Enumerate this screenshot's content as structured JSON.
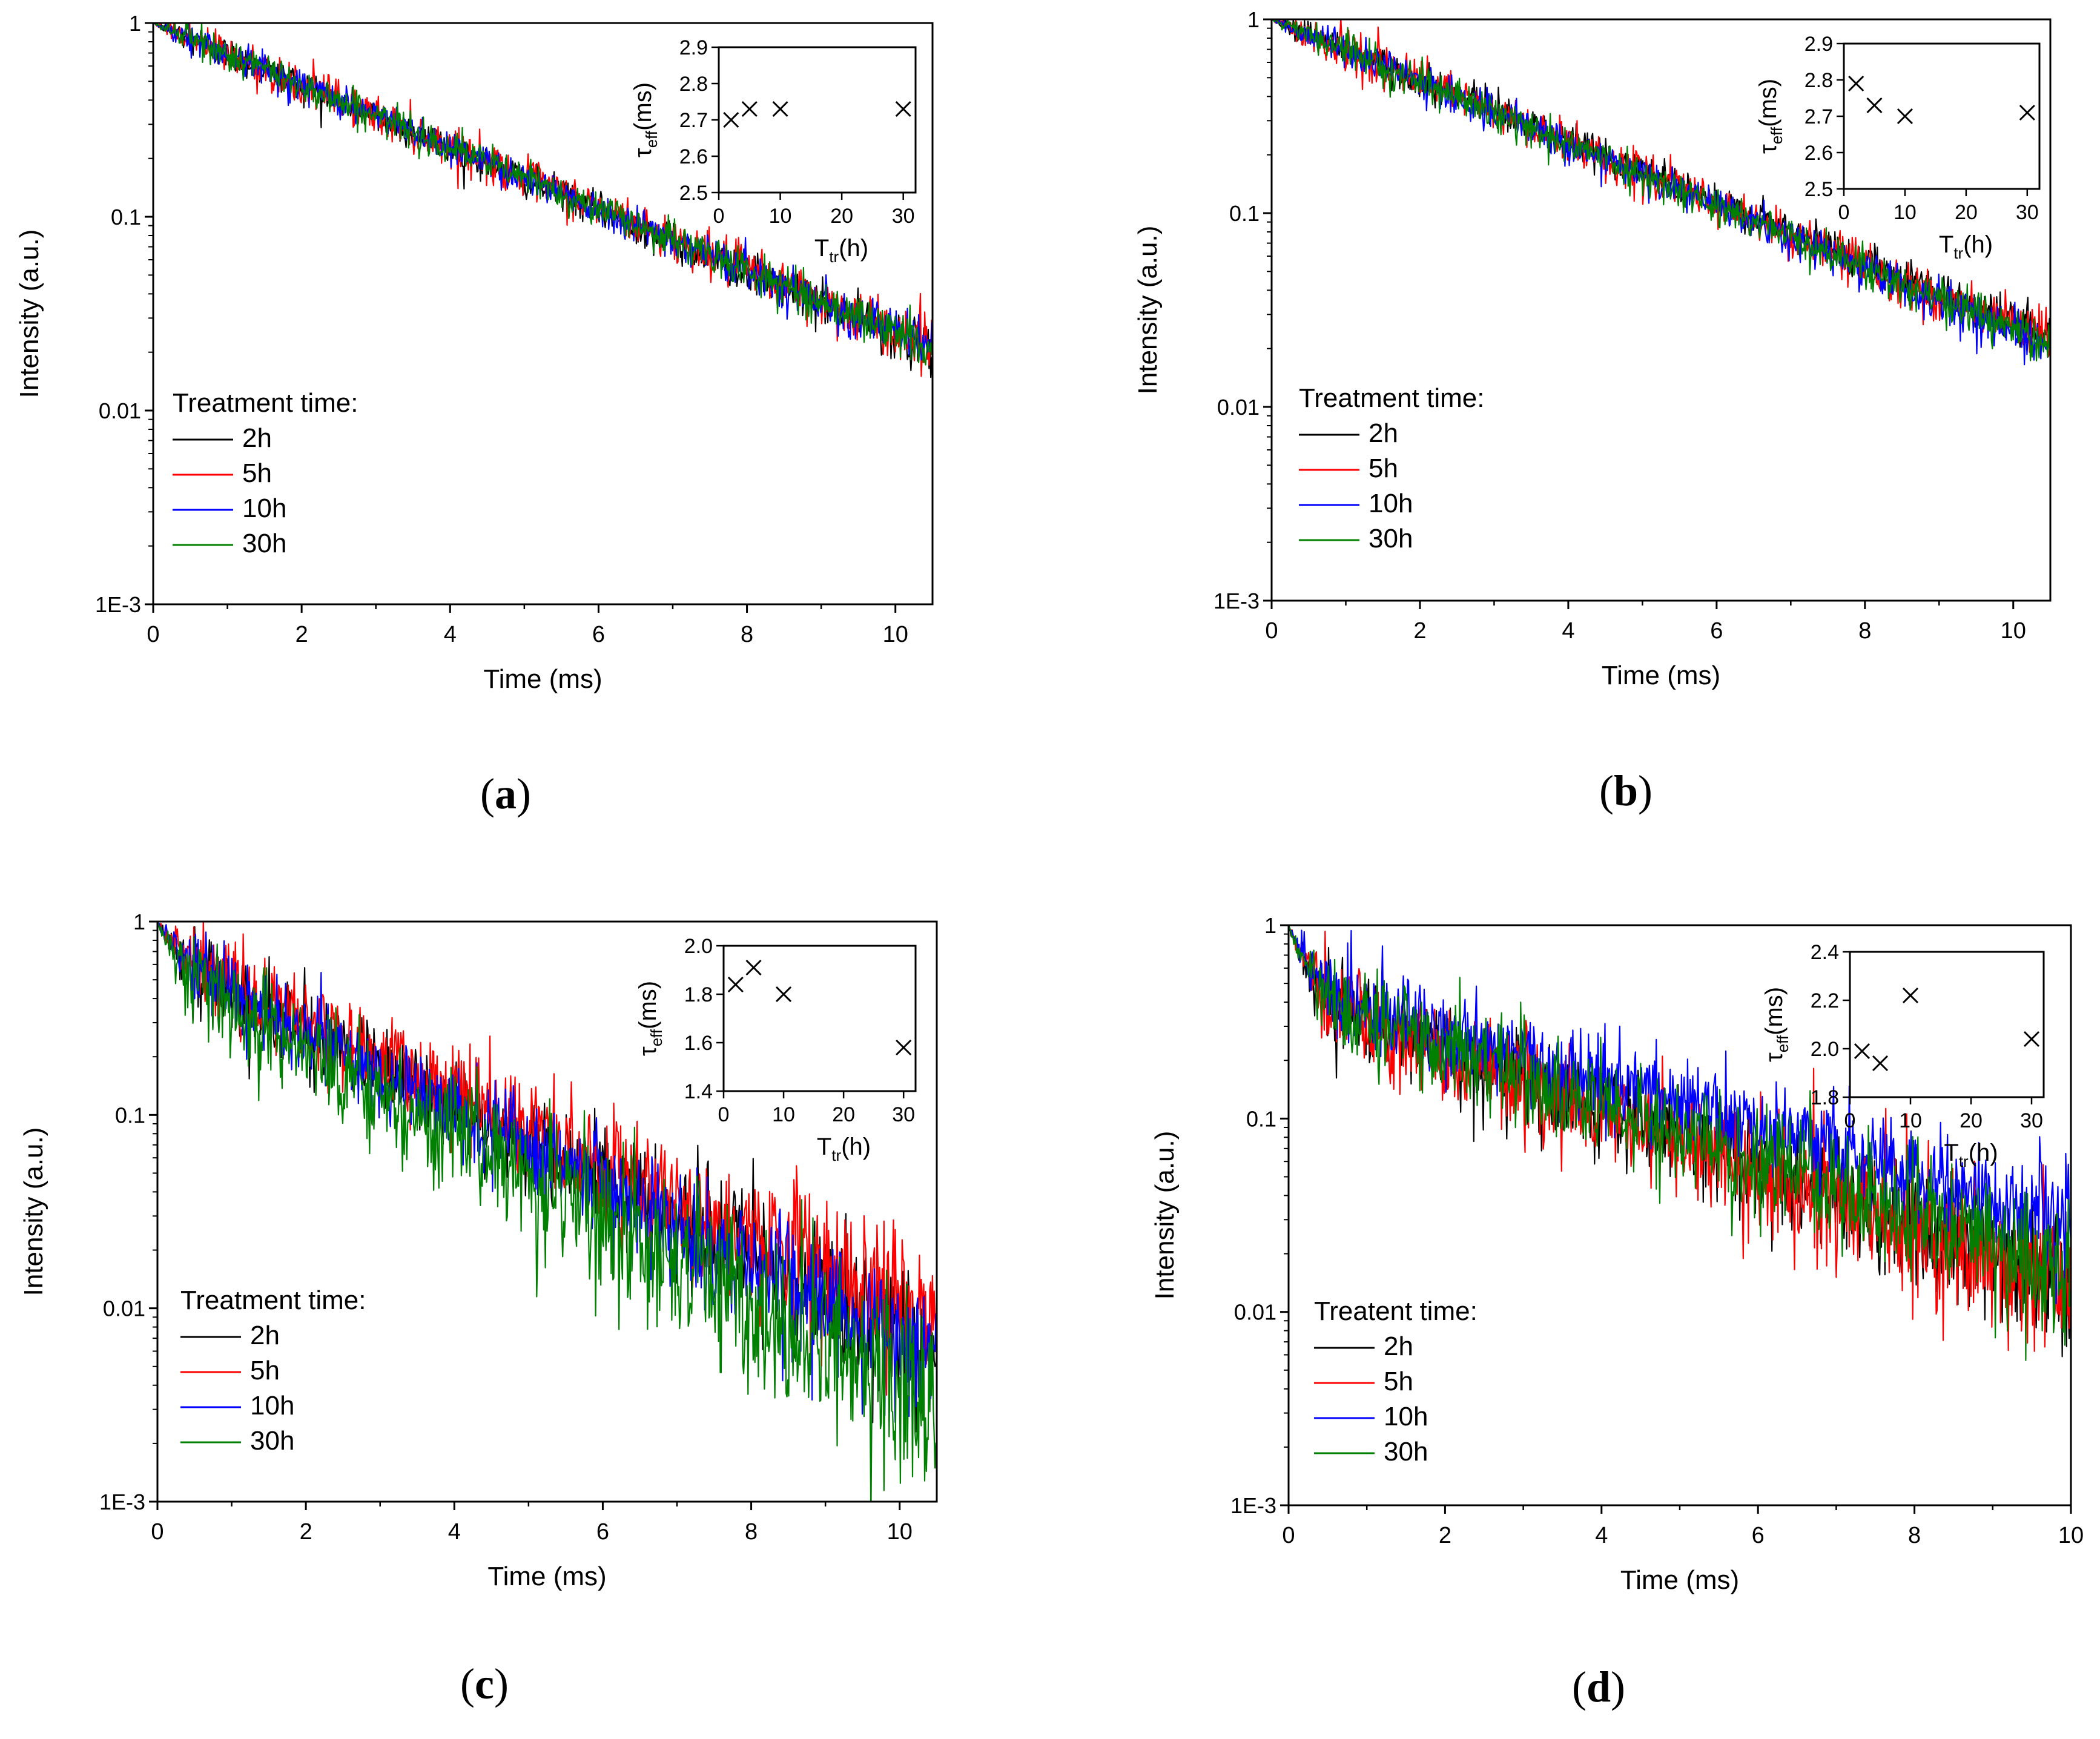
{
  "chart_data": [
    {
      "type": "line",
      "caption": "a",
      "xlabel": "Time (ms)",
      "ylabel": "Intensity (a.u.)",
      "yscale": "log",
      "xlim": [
        0,
        10.5
      ],
      "ylim": [
        0.001,
        1
      ],
      "xticks": [
        "0",
        "2",
        "4",
        "6",
        "8",
        "10"
      ],
      "yticks": [
        "1E-3",
        "0.01",
        "0.1",
        "1"
      ],
      "legend_title": "Treatment time:",
      "legend_position": "bottom-left",
      "series": [
        {
          "name": "2h",
          "color": "#000000",
          "model": [
            {
              "a": 1.0,
              "tau": 2.7
            }
          ],
          "noise": 0.1
        },
        {
          "name": "5h",
          "color": "#ff0000",
          "model": [
            {
              "a": 1.0,
              "tau": 2.73
            }
          ],
          "noise": 0.12
        },
        {
          "name": "10h",
          "color": "#0000ff",
          "model": [
            {
              "a": 1.0,
              "tau": 2.73
            }
          ],
          "noise": 0.1
        },
        {
          "name": "30h",
          "color": "#008000",
          "model": [
            {
              "a": 1.0,
              "tau": 2.72
            }
          ],
          "noise": 0.1
        }
      ],
      "inset": {
        "type": "scatter",
        "xlabel_main": "T",
        "xlabel_sub": "tr",
        "xlabel_tail": "(h)",
        "ylabel_main": "τ",
        "ylabel_sub": "eff",
        "ylabel_tail": "(ms)",
        "xlim": [
          0,
          32
        ],
        "ylim": [
          2.5,
          2.9
        ],
        "xticks": [
          0,
          10,
          20,
          30
        ],
        "yticks": [
          2.5,
          2.6,
          2.7,
          2.8,
          2.9
        ],
        "x": [
          2,
          5,
          10,
          30
        ],
        "y": [
          2.7,
          2.73,
          2.73,
          2.73
        ]
      }
    },
    {
      "type": "line",
      "caption": "b",
      "xlabel": "Time (ms)",
      "ylabel": "Intensity (a.u.)",
      "yscale": "log",
      "xlim": [
        0,
        10.5
      ],
      "ylim": [
        0.001,
        1
      ],
      "xticks": [
        "0",
        "2",
        "4",
        "6",
        "8",
        "10"
      ],
      "yticks": [
        "1E-3",
        "0.01",
        "0.1",
        "1"
      ],
      "legend_title": "Treatment time:",
      "legend_position": "bottom-left",
      "series": [
        {
          "name": "2h",
          "color": "#000000",
          "model": [
            {
              "a": 1.0,
              "tau": 2.79
            }
          ],
          "noise": 0.1
        },
        {
          "name": "5h",
          "color": "#ff0000",
          "model": [
            {
              "a": 1.0,
              "tau": 2.73
            }
          ],
          "noise": 0.12
        },
        {
          "name": "10h",
          "color": "#0000ff",
          "model": [
            {
              "a": 1.0,
              "tau": 2.7
            }
          ],
          "noise": 0.1
        },
        {
          "name": "30h",
          "color": "#008000",
          "model": [
            {
              "a": 1.0,
              "tau": 2.71
            }
          ],
          "noise": 0.1
        }
      ],
      "inset": {
        "type": "scatter",
        "xlabel_main": "T",
        "xlabel_sub": "tr",
        "xlabel_tail": "(h)",
        "ylabel_main": "τ",
        "ylabel_sub": "eff",
        "ylabel_tail": "(ms)",
        "xlim": [
          0,
          32
        ],
        "ylim": [
          2.5,
          2.9
        ],
        "xticks": [
          0,
          10,
          20,
          30
        ],
        "yticks": [
          2.5,
          2.6,
          2.7,
          2.8,
          2.9
        ],
        "x": [
          2,
          5,
          10,
          30
        ],
        "y": [
          2.79,
          2.73,
          2.7,
          2.71
        ]
      }
    },
    {
      "type": "line",
      "caption": "c",
      "xlabel": "Time (ms)",
      "ylabel": "Intensity (a.u.)",
      "yscale": "log",
      "xlim": [
        0,
        10.5
      ],
      "ylim": [
        0.001,
        1
      ],
      "xticks": [
        "0",
        "2",
        "4",
        "6",
        "8",
        "10"
      ],
      "yticks": [
        "1E-3",
        "0.01",
        "0.1",
        "1"
      ],
      "legend_title": "Treatment time:",
      "legend_position": "bottom-left",
      "series": [
        {
          "name": "2h",
          "color": "#000000",
          "model": [
            {
              "a": 0.35,
              "tau": 0.28
            },
            {
              "a": 0.65,
              "tau": 2.25
            }
          ],
          "noise": 0.25
        },
        {
          "name": "5h",
          "color": "#ff0000",
          "model": [
            {
              "a": 0.3,
              "tau": 0.3
            },
            {
              "a": 0.7,
              "tau": 2.4
            }
          ],
          "noise": 0.28
        },
        {
          "name": "10h",
          "color": "#0000ff",
          "model": [
            {
              "a": 0.35,
              "tau": 0.28
            },
            {
              "a": 0.65,
              "tau": 2.2
            }
          ],
          "noise": 0.25
        },
        {
          "name": "30h",
          "color": "#008000",
          "model": [
            {
              "a": 0.42,
              "tau": 0.25
            },
            {
              "a": 0.58,
              "tau": 2.0
            }
          ],
          "noise": 0.32
        }
      ],
      "inset": {
        "type": "scatter",
        "xlabel_main": "T",
        "xlabel_sub": "tr",
        "xlabel_tail": "(h)",
        "ylabel_main": "τ",
        "ylabel_sub": "eff",
        "ylabel_tail": "(ms)",
        "xlim": [
          0,
          32
        ],
        "ylim": [
          1.4,
          2.0
        ],
        "xticks": [
          0,
          10,
          20,
          30
        ],
        "yticks": [
          1.4,
          1.6,
          1.8,
          2.0
        ],
        "x": [
          2,
          5,
          10,
          30
        ],
        "y": [
          1.84,
          1.91,
          1.8,
          1.58
        ]
      }
    },
    {
      "type": "line",
      "caption": "d",
      "xlabel": "Time (ms)",
      "ylabel": "Intensity (a.u.)",
      "yscale": "log",
      "xlim": [
        0,
        10
      ],
      "ylim": [
        0.001,
        1
      ],
      "xticks": [
        "0",
        "2",
        "4",
        "6",
        "8",
        "10"
      ],
      "yticks": [
        "1E-3",
        "0.01",
        "0.1",
        "1"
      ],
      "legend_title": "Treatent time:",
      "legend_position": "bottom-left",
      "series": [
        {
          "name": "2h",
          "color": "#000000",
          "model": [
            {
              "a": 0.55,
              "tau": 0.2
            },
            {
              "a": 0.45,
              "tau": 2.9
            }
          ],
          "noise": 0.28
        },
        {
          "name": "5h",
          "color": "#ff0000",
          "model": [
            {
              "a": 0.55,
              "tau": 0.2
            },
            {
              "a": 0.45,
              "tau": 2.8
            }
          ],
          "noise": 0.32
        },
        {
          "name": "10h",
          "color": "#0000ff",
          "model": [
            {
              "a": 0.5,
              "tau": 0.22
            },
            {
              "a": 0.5,
              "tau": 3.5
            }
          ],
          "noise": 0.25
        },
        {
          "name": "30h",
          "color": "#008000",
          "model": [
            {
              "a": 0.55,
              "tau": 0.2
            },
            {
              "a": 0.45,
              "tau": 3.0
            }
          ],
          "noise": 0.28
        }
      ],
      "inset": {
        "type": "scatter",
        "xlabel_main": "T",
        "xlabel_sub": "tr",
        "xlabel_tail": "(h)",
        "ylabel_main": "τ",
        "ylabel_sub": "eff",
        "ylabel_tail": "(ms)",
        "xlim": [
          0,
          32
        ],
        "ylim": [
          1.8,
          2.4
        ],
        "xticks": [
          0,
          10,
          20,
          30
        ],
        "yticks": [
          1.8,
          2.0,
          2.2,
          2.4
        ],
        "x": [
          2,
          5,
          10,
          30
        ],
        "y": [
          1.99,
          1.94,
          2.22,
          2.04
        ]
      }
    }
  ]
}
